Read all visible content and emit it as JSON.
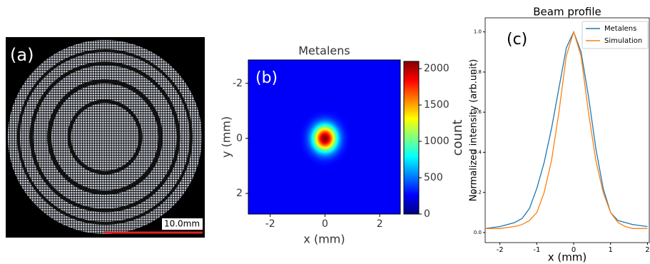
{
  "panel_a": {
    "label": "(a)",
    "scale_bar": "10.0mm"
  },
  "chart_data": [
    {
      "type": "heatmap",
      "label": "(b)",
      "title": "Metalens",
      "x_label": "x (mm)",
      "y_label": "y (mm)",
      "xlim": [
        -2.8,
        2.75
      ],
      "xticks": [
        -2,
        0,
        2
      ],
      "ylim": [
        -2.85,
        2.75
      ],
      "yticks": [
        -2,
        0,
        2
      ],
      "y_inverted": true,
      "colormap": "jet",
      "colorbar_label": "count",
      "clim": [
        0,
        2100
      ],
      "cticks": [
        0,
        500,
        1000,
        1500,
        2000
      ],
      "background": 250,
      "spot": {
        "x": 0,
        "y": 0,
        "peak": 2100,
        "sigma_x": 0.3,
        "sigma_y": 0.33
      }
    },
    {
      "type": "line",
      "label": "(c)",
      "title": "Beam profile",
      "x_label": "x (mm)",
      "y_label": "Normalized intensity (arb.unit)",
      "xlim": [
        -2.4,
        2.05
      ],
      "xticks": [
        -2,
        -1,
        0,
        1,
        2
      ],
      "ylim": [
        -0.05,
        1.07
      ],
      "yticks": [
        {
          "value": 0,
          "label": "0.0"
        },
        0.2,
        0.4,
        0.6,
        0.8,
        {
          "value": 1,
          "label": "1.0"
        }
      ],
      "legend": "upper right",
      "x": [
        -2.4,
        -2.2,
        -2.0,
        -1.8,
        -1.6,
        -1.4,
        -1.2,
        -1.0,
        -0.8,
        -0.6,
        -0.4,
        -0.2,
        0,
        0.2,
        0.4,
        0.6,
        0.8,
        1.0,
        1.2,
        1.4,
        1.6,
        1.8,
        2.0
      ],
      "series": [
        {
          "name": "Metalens",
          "color": "#1f77b4",
          "values": [
            0.02,
            0.025,
            0.03,
            0.04,
            0.05,
            0.07,
            0.12,
            0.22,
            0.35,
            0.52,
            0.72,
            0.92,
            1.0,
            0.9,
            0.68,
            0.42,
            0.22,
            0.1,
            0.06,
            0.05,
            0.04,
            0.035,
            0.03
          ]
        },
        {
          "name": "Simulation",
          "color": "#ff7f0e",
          "values": [
            0.02,
            0.02,
            0.02,
            0.025,
            0.03,
            0.04,
            0.06,
            0.1,
            0.2,
            0.36,
            0.6,
            0.88,
            1.0,
            0.88,
            0.6,
            0.36,
            0.2,
            0.1,
            0.05,
            0.03,
            0.02,
            0.02,
            0.02
          ]
        }
      ]
    }
  ]
}
